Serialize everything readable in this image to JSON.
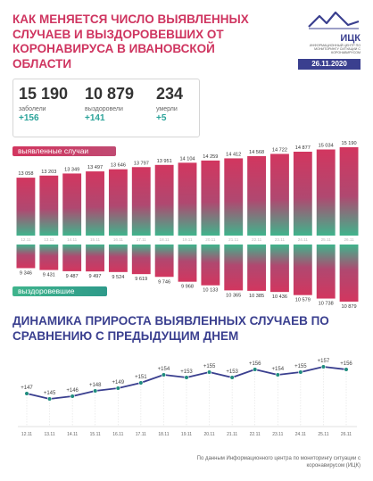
{
  "title": "КАК МЕНЯЕТСЯ ЧИСЛО ВЫЯВЛЕННЫХ СЛУЧАЕВ И ВЫЗДОРОВЕВШИХ ОТ КОРОНАВИРУСА В ИВАНОВСКОЙ ОБЛАСТИ",
  "logo": {
    "name": "ИЦК",
    "subtitle": "ИНФОРМАЦИОННЫЙ ЦЕНТР ПО МОНИТОРИНГУ СИТУАЦИИ С КОРОНАВИРУСОМ",
    "icon": "wave-logo-icon"
  },
  "date": "26.11.2020",
  "summary": {
    "infected": {
      "value": "15 190",
      "label": "заболели",
      "delta": "+156"
    },
    "recovered": {
      "value": "10 879",
      "label": "выздоровели",
      "delta": "+141"
    },
    "deaths": {
      "value": "234",
      "label": "умерли",
      "delta": "+5"
    }
  },
  "labels": {
    "cases": "выявленные случаи",
    "recovered": "выздоровевшие"
  },
  "section2_title": "ДИНАМИКА ПРИРОСТА ВЫЯВЛЕННЫХ СЛУЧАЕВ ПО СРАВНЕНИЮ С ПРЕДЫДУЩИМ ДНЕМ",
  "source": "По данным Информационного центра по мониторингу ситуации с коронавирусом (ИЦК)",
  "colors": {
    "cases_top": "#d2365f",
    "cases_bottom": "#3fb48c",
    "line": "#3a3f8f",
    "green": "#2ba39a",
    "marker": "#1f8c7e"
  },
  "chart_data": [
    {
      "type": "bar",
      "categories": [
        "12.11",
        "13.11",
        "14.11",
        "15.11",
        "16.11",
        "17.11",
        "18.11",
        "19.11",
        "20.11",
        "21.11",
        "22.11",
        "23.11",
        "24.11",
        "25.11",
        "26.11"
      ],
      "series": [
        {
          "name": "выявленные случаи",
          "values": [
            13058,
            13203,
            13349,
            13497,
            13646,
            13797,
            13951,
            14104,
            14259,
            14412,
            14568,
            14722,
            14877,
            15034,
            15190
          ]
        },
        {
          "name": "выздоровевшие",
          "values": [
            9346,
            9431,
            9487,
            9497,
            9524,
            9619,
            9746,
            9968,
            10133,
            10365,
            10385,
            10436,
            10579,
            10738,
            10879
          ]
        }
      ],
      "value_labels": {
        "cases": [
          "13 058",
          "13 203",
          "13 349",
          "13 497",
          "13 646",
          "13 797",
          "13 951",
          "14 104",
          "14 259",
          "14 412",
          "14 568",
          "14 722",
          "14 877",
          "15 034",
          "15 190"
        ],
        "recovered": [
          "9 346",
          "9 431",
          "9 487",
          "9 497",
          "9 524",
          "9 619",
          "9 746",
          "9 968",
          "10 133",
          "10 365",
          "10 385",
          "10 436",
          "10 579",
          "10 738",
          "10 879"
        ]
      }
    },
    {
      "type": "line",
      "x": [
        "12.11",
        "13.11",
        "14.11",
        "15.11",
        "16.11",
        "17.11",
        "18.11",
        "19.11",
        "20.11",
        "21.11",
        "22.11",
        "23.11",
        "24.11",
        "25.11",
        "26.11"
      ],
      "series": [
        {
          "values": [
            147,
            145,
            146,
            148,
            149,
            151,
            154,
            153,
            155,
            153,
            156,
            154,
            155,
            157,
            156
          ]
        }
      ],
      "value_labels": [
        "+147",
        "+145",
        "+146",
        "+148",
        "+149",
        "+151",
        "+154",
        "+153",
        "+155",
        "+153",
        "+156",
        "+154",
        "+155",
        "+157",
        "+156"
      ]
    }
  ]
}
